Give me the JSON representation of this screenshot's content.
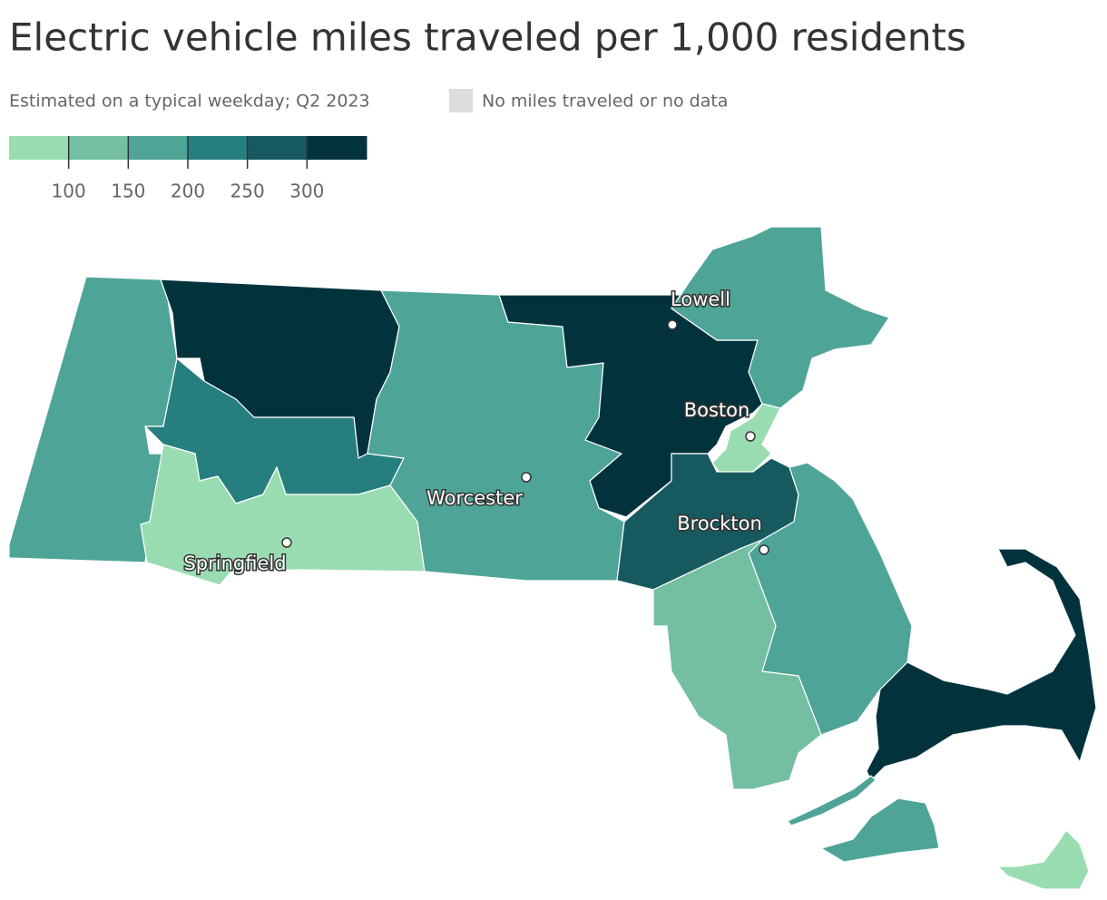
{
  "title": "Electric vehicle miles traveled per 1,000 residents",
  "subtitle": "Estimated on a typical weekday; Q2 2023",
  "no_data": {
    "label": "No miles traveled or no data",
    "color": "#dcdcdc"
  },
  "legend": {
    "colors": [
      "#9adcb2",
      "#74bfa2",
      "#4ea597",
      "#267f7e",
      "#165a5f",
      "#02333d"
    ],
    "xlim": [
      50,
      350
    ],
    "ticks": [
      100,
      150,
      200,
      250,
      300
    ]
  },
  "cities": [
    "Lowell",
    "Boston",
    "Worcester",
    "Brockton",
    "Springfield"
  ]
}
